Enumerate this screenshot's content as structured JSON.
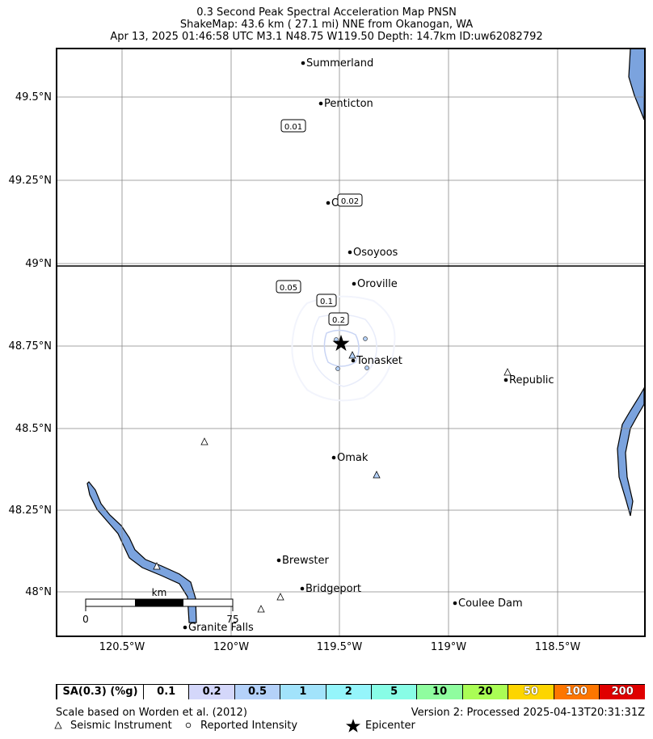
{
  "title": {
    "line1": "0.3 Second Peak Spectral Acceleration Map PNSN",
    "line2": "ShakeMap: 43.6 km (  27.1 mi) NNE from Okanogan, WA",
    "line3": "Apr 13, 2025 01:46:58 UTC M3.1 N48.75 W119.50 Depth: 14.7km ID:uw62082792"
  },
  "axes": {
    "lat_labels": [
      "49.5°N",
      "49.25°N",
      "49°N",
      "48.75°N",
      "48.5°N",
      "48.25°N",
      "48°N"
    ],
    "lon_labels": [
      "120.5°W",
      "120°W",
      "119.5°W",
      "119°W",
      "118.5°W"
    ]
  },
  "cities": [
    "Summerland",
    "Penticton",
    "O",
    "Osoyoos",
    "Oroville",
    "Tonasket",
    "Republic",
    "Omak",
    "Brewster",
    "Bridgeport",
    "Coulee Dam",
    "Granite Falls"
  ],
  "contour_labels": [
    "0.01",
    "0.02",
    "0.05",
    "0.1",
    "0.2"
  ],
  "scale_bar": {
    "unit": "km",
    "start": "0",
    "end": "75"
  },
  "legend": {
    "header": "SA(0.3) (%g)",
    "bins": [
      {
        "label": "0.1",
        "color": "#ffffff"
      },
      {
        "label": "0.2",
        "color": "#d4d7fa"
      },
      {
        "label": "0.5",
        "color": "#b4d1f9"
      },
      {
        "label": "1",
        "color": "#a2e3fb"
      },
      {
        "label": "2",
        "color": "#95f5fb"
      },
      {
        "label": "5",
        "color": "#88fde6"
      },
      {
        "label": "10",
        "color": "#8ffd9f"
      },
      {
        "label": "20",
        "color": "#aafd55"
      },
      {
        "label": "50",
        "color": "#fdd500"
      },
      {
        "label": "100",
        "color": "#fd7600"
      },
      {
        "label": "200",
        "color": "#e00000"
      }
    ]
  },
  "footer": {
    "scale_note": "Scale based on Worden et al. (2012)",
    "version": "Version 2: Processed 2025-04-13T20:31:31Z",
    "instrument_legend": "Seismic Instrument",
    "intensity_legend": "Reported Intensity",
    "epicenter_legend": "Epicenter"
  },
  "colors": {
    "water": "#7ba3de",
    "contour": "#c8d4f4",
    "grid": "#888888"
  }
}
